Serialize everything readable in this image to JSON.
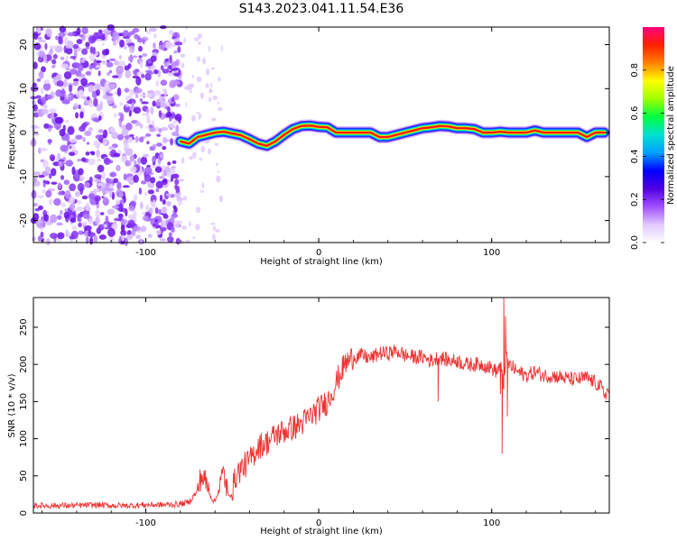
{
  "title": "S143.2023.041.11.54.E36",
  "chart_data": [
    {
      "type": "heatmap",
      "name": "spectrogram",
      "xlabel": "Height of straight line (km)",
      "ylabel": "Frequency (Hz)",
      "xlim": [
        -165,
        168
      ],
      "ylim": [
        -25,
        24
      ],
      "xticks": [
        -100,
        0,
        100
      ],
      "yticks": [
        -20,
        -10,
        0,
        10,
        20
      ],
      "xtick_labels": [
        "-100",
        "0",
        "100"
      ],
      "ytick_labels": [
        "-20",
        "-10",
        "0",
        "10",
        "20"
      ],
      "colorbar": {
        "label": "Normalized spectral amplitude",
        "range": [
          0.0,
          1.0
        ],
        "ticks": [
          0.0,
          0.2,
          0.4,
          0.6,
          0.8
        ],
        "tick_labels": [
          "0.0",
          "0.2",
          "0.4",
          "0.6",
          "0.8"
        ],
        "colormap": [
          "#ffffff",
          "#e0c8ff",
          "#a050ff",
          "#5000e0",
          "#0000ff",
          "#00a0ff",
          "#00e0d0",
          "#00ff40",
          "#a0ff00",
          "#ffff00",
          "#ff8000",
          "#ff2000",
          "#ff0080"
        ]
      },
      "trace": {
        "x": [
          -80,
          -75,
          -70,
          -65,
          -60,
          -55,
          -50,
          -45,
          -40,
          -35,
          -30,
          -25,
          -20,
          -15,
          -10,
          -5,
          0,
          5,
          10,
          15,
          20,
          25,
          30,
          35,
          40,
          45,
          50,
          55,
          60,
          65,
          70,
          75,
          80,
          85,
          90,
          95,
          100,
          105,
          110,
          115,
          120,
          125,
          130,
          135,
          140,
          145,
          150,
          155,
          160,
          165
        ],
        "y": [
          -2,
          -2.5,
          -1,
          -0.5,
          0,
          0.2,
          -0.2,
          -0.6,
          -1.5,
          -2.5,
          -3,
          -2,
          -0.5,
          0.8,
          1.5,
          1.6,
          1.3,
          1.2,
          0,
          0,
          0,
          0,
          0,
          -1,
          -1,
          -0.5,
          0,
          0.5,
          1,
          1.2,
          1.5,
          1.4,
          1,
          1,
          0.8,
          0,
          0,
          0.2,
          0,
          0,
          0,
          0.5,
          0,
          0,
          0,
          0,
          0,
          -1,
          0,
          0
        ]
      }
    },
    {
      "type": "line",
      "name": "snr",
      "xlabel": "Height of straight line (km)",
      "ylabel": "SNR (10 * v/v)",
      "xlim": [
        -165,
        168
      ],
      "ylim": [
        0,
        290
      ],
      "xticks": [
        -100,
        0,
        100
      ],
      "yticks": [
        0,
        50,
        100,
        150,
        200,
        250
      ],
      "xtick_labels": [
        "-100",
        "0",
        "100"
      ],
      "ytick_labels": [
        "0",
        "50",
        "100",
        "150",
        "200",
        "250"
      ],
      "color": "#ee3333",
      "series": [
        {
          "name": "SNR",
          "x": [
            -165,
            -150,
            -140,
            -130,
            -120,
            -110,
            -100,
            -90,
            -80,
            -75,
            -70,
            -68,
            -65,
            -62,
            -60,
            -55,
            -52,
            -50,
            -48,
            -45,
            -40,
            -35,
            -30,
            -25,
            -20,
            -15,
            -10,
            -5,
            0,
            5,
            10,
            15,
            20,
            25,
            30,
            35,
            40,
            45,
            50,
            55,
            60,
            65,
            70,
            75,
            80,
            85,
            90,
            95,
            100,
            103,
            105,
            107,
            108,
            110,
            115,
            120,
            125,
            130,
            135,
            140,
            145,
            150,
            155,
            160,
            163,
            165,
            168
          ],
          "y": [
            10,
            10,
            10,
            11,
            10,
            10,
            11,
            11,
            12,
            15,
            30,
            50,
            40,
            20,
            15,
            55,
            20,
            30,
            50,
            60,
            70,
            90,
            95,
            105,
            110,
            115,
            120,
            130,
            140,
            150,
            175,
            200,
            210,
            212,
            208,
            215,
            215,
            218,
            212,
            210,
            210,
            205,
            210,
            205,
            205,
            200,
            200,
            200,
            195,
            190,
            200,
            170,
            210,
            200,
            190,
            185,
            190,
            185,
            185,
            183,
            180,
            180,
            182,
            175,
            170,
            160,
            165
          ],
          "spikes": [
            {
              "x": 69,
              "y": 150
            },
            {
              "x": 105,
              "y": 160
            },
            {
              "x": 106,
              "y": 80
            },
            {
              "x": 107,
              "y": 290
            },
            {
              "x": 108,
              "y": 265
            },
            {
              "x": 109,
              "y": 130
            }
          ]
        }
      ]
    }
  ]
}
